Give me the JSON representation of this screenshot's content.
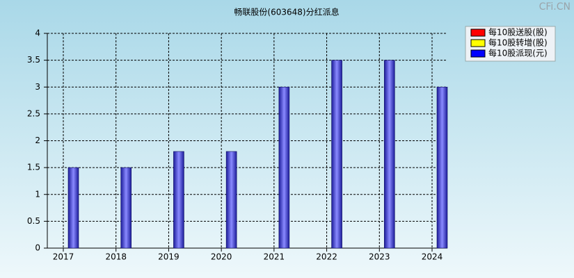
{
  "chart_data": {
    "type": "bar",
    "title": "畅联股份(603648)分红派息",
    "watermark": "CFi.CN",
    "categories": [
      "2017",
      "2018",
      "2019",
      "2020",
      "2021",
      "2022",
      "2023",
      "2024"
    ],
    "series": [
      {
        "name": "每10股送股(股)",
        "color": "#ff0000",
        "values": [
          null,
          null,
          null,
          null,
          null,
          null,
          null,
          null
        ]
      },
      {
        "name": "每10股转增(股)",
        "color": "#ffff00",
        "values": [
          null,
          null,
          null,
          null,
          null,
          null,
          null,
          null
        ]
      },
      {
        "name": "每10股派现(元)",
        "color": "#0000ff",
        "values": [
          1.5,
          1.5,
          1.8,
          1.8,
          3,
          3.5,
          3.5,
          3
        ]
      }
    ],
    "ylim": [
      0,
      4
    ],
    "yticks": [
      0,
      0.5,
      1,
      1.5,
      2,
      2.5,
      3,
      3.5,
      4
    ],
    "grid": true,
    "legend": "top-right"
  }
}
